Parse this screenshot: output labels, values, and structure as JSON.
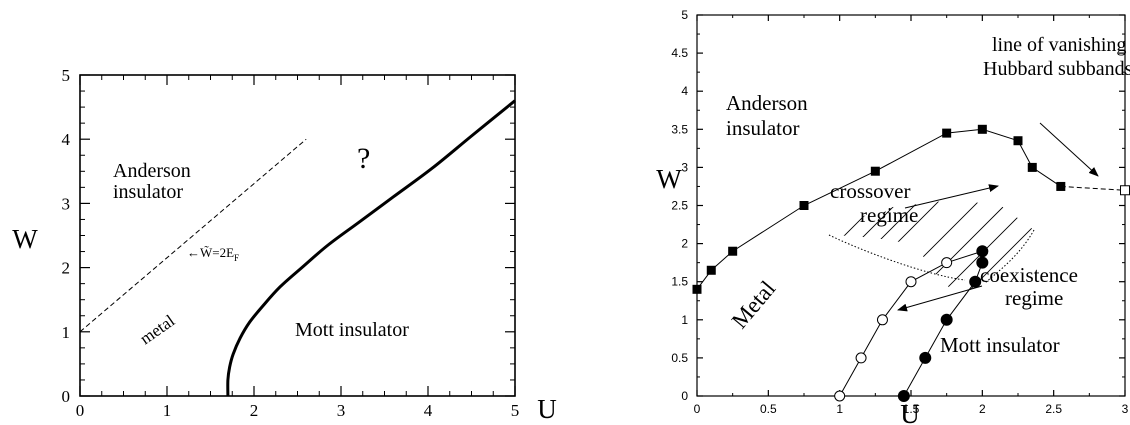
{
  "chart_data": [
    {
      "type": "line",
      "xlabel": "U",
      "ylabel": "W",
      "xlim": [
        0,
        5
      ],
      "ylim": [
        0,
        5
      ],
      "xticks": [
        "0",
        "1",
        "2",
        "3",
        "4",
        "5"
      ],
      "yticks": [
        "0",
        "1",
        "2",
        "3",
        "4",
        "5"
      ],
      "grid": false,
      "legend": "none",
      "series": [
        {
          "style": "solid-thick",
          "x": [
            1.7,
            1.7,
            1.72,
            1.76,
            1.84,
            1.95,
            2.1,
            2.3,
            2.55,
            2.85,
            3.2,
            3.6,
            4.05,
            4.5,
            5.0
          ],
          "y": [
            0.0,
            0.25,
            0.45,
            0.65,
            0.9,
            1.15,
            1.4,
            1.7,
            2.0,
            2.35,
            2.7,
            3.1,
            3.55,
            4.05,
            4.6
          ]
        },
        {
          "style": "dashed",
          "x": [
            0.0,
            2.6
          ],
          "y": [
            1.0,
            4.0
          ]
        }
      ],
      "annotations": [
        {
          "text": "Anderson",
          "x": 0.2,
          "y": 3.5
        },
        {
          "text": "insulator",
          "x": 0.2,
          "y": 3.2
        },
        {
          "text": "?",
          "x": 3.2,
          "y": 3.7
        },
        {
          "text": "←W̃=2E",
          "sub": "F",
          "x": 1.22,
          "y": 2.27
        },
        {
          "text": "metal",
          "x": 0.9,
          "y": 0.7
        },
        {
          "text": "Mott insulator",
          "x": 2.65,
          "y": 0.85
        }
      ]
    },
    {
      "type": "line",
      "xlabel": "U",
      "ylabel": "W",
      "xlim": [
        0,
        3
      ],
      "ylim": [
        0,
        5
      ],
      "xticks": [
        "0",
        "0.5",
        "1",
        "1.5",
        "2",
        "2.5",
        "3"
      ],
      "yticks": [
        "0",
        "0.5",
        "1",
        "1.5",
        "2",
        "2.5",
        "3",
        "3.5",
        "4",
        "4.5",
        "5"
      ],
      "grid": false,
      "legend": "none",
      "series": [
        {
          "marker": "filled-square",
          "line": "solid",
          "x": [
            0.0,
            0.1,
            0.25,
            0.75,
            1.25,
            1.75,
            2.0,
            2.25,
            2.35,
            2.55
          ],
          "y": [
            1.4,
            1.65,
            1.9,
            2.5,
            2.95,
            3.45,
            3.5,
            3.35,
            3.0,
            2.75
          ]
        },
        {
          "marker": "open-square",
          "line": "dashed",
          "x": [
            2.55,
            3.0
          ],
          "y": [
            2.75,
            2.7
          ]
        },
        {
          "marker": "open-circle",
          "line": "solid",
          "x": [
            1.0,
            1.15,
            1.3,
            1.5,
            1.75,
            2.0
          ],
          "y": [
            0.0,
            0.5,
            1.0,
            1.5,
            1.75,
            1.9
          ]
        },
        {
          "marker": "filled-circle",
          "line": "solid",
          "x": [
            1.45,
            1.6,
            1.75,
            1.95,
            2.0,
            2.0
          ],
          "y": [
            0.0,
            0.5,
            1.0,
            1.5,
            1.75,
            1.9
          ]
        }
      ],
      "annotations": [
        {
          "text": "Anderson",
          "x": 0.1,
          "y": 3.75
        },
        {
          "text": "insulator",
          "x": 0.1,
          "y": 3.3
        },
        {
          "text": "line of vanishing",
          "x": 2.07,
          "y": 4.5
        },
        {
          "text": "Hubbard subbands",
          "x": 2.03,
          "y": 4.1
        },
        {
          "text": "crossover",
          "x": 1.08,
          "y": 2.55
        },
        {
          "text": "regime",
          "x": 1.22,
          "y": 2.12
        },
        {
          "text": "coexistence",
          "x": 2.07,
          "y": 1.2
        },
        {
          "text": "regime",
          "x": 2.17,
          "y": 0.78
        },
        {
          "text": "Metal",
          "x": 0.45,
          "y": 0.6
        },
        {
          "text": "Mott insulator",
          "x": 1.76,
          "y": 0.4
        }
      ]
    }
  ]
}
